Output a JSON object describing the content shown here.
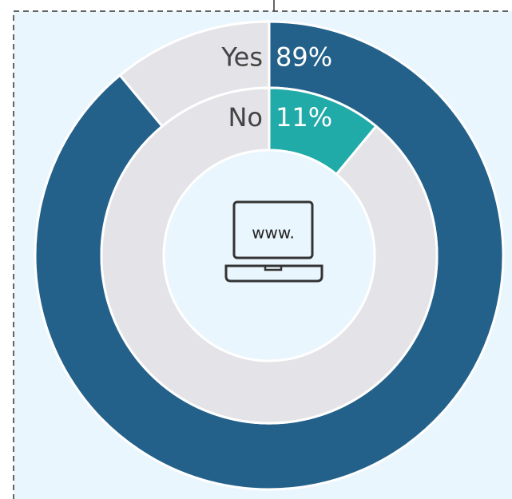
{
  "chart_data": {
    "type": "donut",
    "series": [
      {
        "name": "Yes",
        "color": "#23618a",
        "values": [
          89
        ],
        "value_labels": [
          "89%"
        ]
      },
      {
        "name": "No",
        "color": "#20aaa8",
        "values": [
          11
        ],
        "value_labels": [
          "11%"
        ]
      }
    ],
    "remainder_color": "#e4e4e8",
    "center_text": "www."
  }
}
